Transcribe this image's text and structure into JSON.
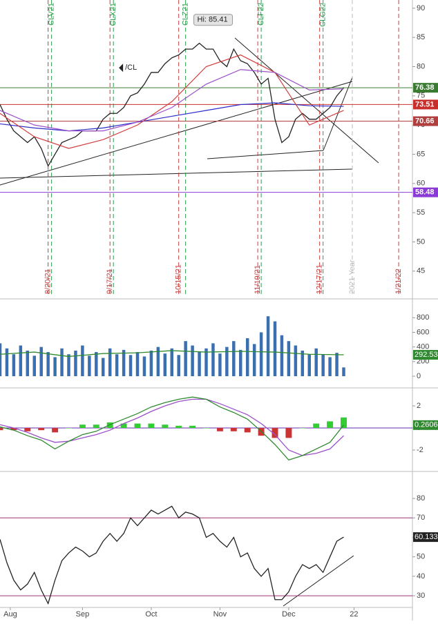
{
  "chart_data": [
    {
      "type": "line",
      "xlim": [
        0,
        120
      ],
      "ylim": [
        40.6,
        91.4
      ],
      "yticks": [
        45,
        50,
        55,
        60,
        65,
        70,
        75,
        80,
        85,
        90
      ],
      "grid": false,
      "series": [
        {
          "style": "line",
          "color": "#222222",
          "width": 1.3,
          "x": [
            0,
            2,
            4,
            6,
            8,
            10,
            12,
            14,
            16,
            18,
            20,
            22,
            24,
            26,
            28,
            30,
            32,
            34,
            36,
            38,
            40,
            42,
            44,
            46,
            48,
            50,
            52,
            54,
            56,
            58,
            60,
            62,
            64,
            66,
            68,
            70,
            72,
            74,
            76,
            78,
            80,
            82,
            84,
            86,
            88,
            90,
            92,
            94,
            96,
            98,
            100
          ],
          "values": [
            73.5,
            71,
            69,
            68,
            67,
            68,
            66,
            63,
            65,
            67,
            67.5,
            68,
            69,
            69,
            69,
            71,
            72,
            72,
            73,
            75,
            75.5,
            77,
            79,
            79,
            80.5,
            81.5,
            82,
            83,
            83,
            84,
            83,
            83,
            81,
            80,
            83,
            81,
            80.5,
            79,
            77,
            78,
            71,
            67,
            68,
            71,
            72,
            71,
            71,
            72,
            73,
            75,
            76.38
          ]
        },
        {
          "style": "line",
          "color": "#2b2bc8",
          "width": 1.2,
          "x": [
            0,
            10,
            20,
            30,
            40,
            50,
            60,
            70,
            80,
            90,
            100
          ],
          "values": [
            70.2,
            69.5,
            69,
            69.5,
            70.5,
            71.5,
            72.5,
            73.5,
            73.8,
            73.3,
            73.2
          ]
        },
        {
          "style": "line",
          "color": "#d23c3c",
          "width": 1.2,
          "x": [
            0,
            10,
            20,
            30,
            40,
            50,
            60,
            70,
            80,
            90,
            100
          ],
          "values": [
            72,
            68,
            66,
            67.5,
            70,
            74,
            80,
            82,
            79,
            70,
            72.5
          ]
        },
        {
          "style": "line",
          "color": "#9b4fc9",
          "width": 1.2,
          "x": [
            0,
            10,
            20,
            30,
            40,
            50,
            60,
            70,
            80,
            90,
            100
          ],
          "values": [
            72.5,
            70,
            69,
            69,
            70.5,
            73,
            77,
            79.5,
            79,
            76,
            76.2
          ]
        }
      ],
      "levels": [
        {
          "value": 76.38,
          "color": "#3b7a32"
        },
        {
          "value": 73.51,
          "color": "#c8302c"
        },
        {
          "value": 70.66,
          "color": "#b04040"
        },
        {
          "value": 58.48,
          "color": "#8a3ad6"
        }
      ],
      "contract_rolls": [
        {
          "label": "CLV21",
          "x": 15,
          "color": "#2a9a4a"
        },
        {
          "label": "CLX21",
          "x": 33,
          "color": "#2a9a4a"
        },
        {
          "label": "CLZ21",
          "x": 54,
          "color": "#2a9a4a"
        },
        {
          "label": "CLF22",
          "x": 76,
          "color": "#2a9a4a"
        },
        {
          "label": "CLG22",
          "x": 94,
          "color": "#2a9a4a"
        }
      ],
      "expirations": [
        {
          "label": "8/20/21",
          "x": 14,
          "color": "#c83c3c"
        },
        {
          "label": "9/17/21",
          "x": 32,
          "color": "#c83c3c"
        },
        {
          "label": "10/15/21",
          "x": 52,
          "color": "#c83c3c"
        },
        {
          "label": "11/19/21",
          "x": 75,
          "color": "#c83c3c"
        },
        {
          "label": "12/17/21",
          "x": 93,
          "color": "#c83c3c"
        },
        {
          "label": "2021 Year",
          "x": 102.5,
          "color": "#bbbbbb"
        },
        {
          "label": "1/21/22",
          "x": 116,
          "color": "#c83c3c"
        }
      ],
      "annotations": [
        {
          "text": "Hi: 85.41",
          "x": 58,
          "y": 85.41
        },
        {
          "text": "/CL",
          "x": 35,
          "y": 79.8
        }
      ]
    },
    {
      "type": "bar",
      "xlim": [
        0,
        120
      ],
      "ylim": [
        0,
        1020
      ],
      "yticks": [
        0,
        200,
        400,
        600,
        800
      ],
      "grid": false,
      "series": [
        {
          "style": "bar",
          "color": "#3a6fb0",
          "x": [
            0,
            2,
            4,
            6,
            8,
            10,
            12,
            14,
            16,
            18,
            20,
            22,
            24,
            26,
            28,
            30,
            32,
            34,
            36,
            38,
            40,
            42,
            44,
            46,
            48,
            50,
            52,
            54,
            56,
            58,
            60,
            62,
            64,
            66,
            68,
            70,
            72,
            74,
            76,
            78,
            80,
            82,
            84,
            86,
            88,
            90,
            92,
            94,
            96,
            98,
            100
          ],
          "values": [
            450,
            380,
            300,
            420,
            350,
            280,
            400,
            330,
            260,
            380,
            300,
            350,
            420,
            280,
            330,
            250,
            380,
            300,
            360,
            290,
            330,
            270,
            350,
            400,
            310,
            380,
            290,
            480,
            420,
            330,
            380,
            450,
            310,
            400,
            480,
            360,
            520,
            440,
            600,
            820,
            750,
            560,
            480,
            420,
            350,
            300,
            380,
            300,
            260,
            320,
            120
          ]
        },
        {
          "style": "line",
          "color": "#2f8a2f",
          "width": 1.3,
          "tag": true,
          "x": [
            0,
            10,
            20,
            30,
            40,
            50,
            60,
            70,
            80,
            90,
            100
          ],
          "values": [
            300,
            330,
            270,
            310,
            320,
            350,
            330,
            340,
            330,
            300,
            292.53
          ]
        }
      ]
    },
    {
      "type": "line",
      "xlim": [
        0,
        120
      ],
      "ylim": [
        -3.75,
        3.375
      ],
      "yticks": [
        -2,
        0,
        2
      ],
      "grid": false,
      "series": [
        {
          "style": "bar",
          "color": "#33cc33",
          "negative_color": "#cc3333",
          "x": [
            0,
            4,
            8,
            12,
            16,
            20,
            24,
            28,
            32,
            36,
            40,
            44,
            48,
            52,
            56,
            60,
            64,
            68,
            72,
            76,
            80,
            84,
            88,
            92,
            96,
            100
          ],
          "values": [
            -0.2,
            -0.2,
            -0.3,
            -0.2,
            -0.4,
            0,
            0.3,
            0.3,
            0.5,
            0.4,
            0.4,
            0.4,
            0.3,
            0.2,
            0.2,
            0,
            -0.3,
            -0.3,
            -0.4,
            -0.7,
            -0.9,
            -0.9,
            0,
            0.4,
            0.6,
            0.95
          ]
        },
        {
          "style": "line",
          "color": "#9b4fc9",
          "width": 1.3,
          "x": [
            0,
            4,
            8,
            12,
            16,
            20,
            24,
            28,
            32,
            36,
            40,
            44,
            48,
            52,
            56,
            60,
            64,
            68,
            72,
            76,
            80,
            84,
            88,
            92,
            96,
            100
          ],
          "values": [
            0.3,
            0,
            -0.4,
            -0.9,
            -1.3,
            -1.2,
            -0.9,
            -0.6,
            -0.2,
            0.4,
            0.9,
            1.5,
            2,
            2.4,
            2.6,
            2.6,
            2.2,
            1.7,
            1.2,
            0.4,
            -0.6,
            -2,
            -2.5,
            -2.3,
            -1.9,
            -0.7
          ]
        },
        {
          "style": "line",
          "color": "#2f8a2f",
          "width": 1.3,
          "tag": true,
          "x": [
            0,
            4,
            8,
            12,
            16,
            20,
            24,
            28,
            32,
            36,
            40,
            44,
            48,
            52,
            56,
            60,
            64,
            68,
            72,
            76,
            80,
            84,
            88,
            92,
            96,
            100
          ],
          "values": [
            0.1,
            -0.2,
            -0.7,
            -1.1,
            -1.9,
            -1.2,
            -0.6,
            -0.3,
            0.3,
            0.8,
            1.3,
            1.9,
            2.3,
            2.6,
            2.8,
            2.6,
            1.9,
            1.4,
            0.8,
            -0.3,
            -1.5,
            -2.9,
            -2.5,
            -1.9,
            -1.3,
            0.2606
          ]
        }
      ],
      "levels": [
        {
          "value": 0,
          "color": "#6a2ab0"
        }
      ]
    },
    {
      "type": "line",
      "xlim": [
        0,
        120
      ],
      "ylim": [
        24,
        92.8
      ],
      "yticks": [
        30,
        40,
        50,
        60,
        70,
        80
      ],
      "grid": false,
      "xticks": [
        {
          "value": 3,
          "label": "Aug"
        },
        {
          "value": 24,
          "label": "Sep"
        },
        {
          "value": 44,
          "label": "Oct"
        },
        {
          "value": 64,
          "label": "Nov"
        },
        {
          "value": 84,
          "label": "Dec"
        },
        {
          "value": 103,
          "label": "22"
        }
      ],
      "series": [
        {
          "style": "line",
          "color": "#222222",
          "width": 1.3,
          "tag": true,
          "x": [
            0,
            2,
            4,
            6,
            8,
            10,
            12,
            14,
            16,
            18,
            20,
            22,
            24,
            26,
            28,
            30,
            32,
            34,
            36,
            38,
            40,
            42,
            44,
            46,
            48,
            50,
            52,
            54,
            56,
            58,
            60,
            62,
            64,
            66,
            68,
            70,
            72,
            74,
            76,
            78,
            80,
            82,
            84,
            86,
            88,
            90,
            92,
            94,
            96,
            98,
            100
          ],
          "values": [
            59,
            47,
            38,
            33,
            36,
            42,
            33,
            26,
            38,
            48,
            52,
            55,
            53,
            50,
            52,
            58,
            62,
            58,
            62,
            70,
            66,
            70,
            74,
            72,
            74,
            76,
            70,
            73,
            72,
            70,
            60,
            62,
            58,
            55,
            60,
            50,
            52,
            44,
            40,
            44,
            28,
            28,
            32,
            40,
            46,
            44,
            46,
            42,
            50,
            58,
            60.133
          ]
        }
      ],
      "levels": [
        {
          "value": 70,
          "color": "#a03070"
        },
        {
          "value": 30,
          "color": "#a03070"
        }
      ]
    }
  ]
}
